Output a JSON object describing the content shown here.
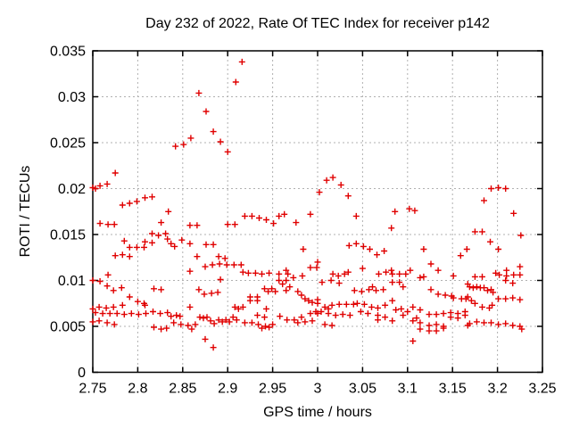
{
  "chart_data": {
    "type": "scatter",
    "title": "Day 232 of 2022, Rate Of TEC Index for receiver p142",
    "xlabel": "GPS time / hours",
    "ylabel": "ROTI / TECUs",
    "xlim": [
      2.75,
      3.25
    ],
    "ylim": [
      0,
      0.035
    ],
    "xticks": {
      "values": [
        2.75,
        2.8,
        2.85,
        2.9,
        2.95,
        3.0,
        3.05,
        3.1,
        3.15,
        3.2,
        3.25
      ],
      "labels": [
        "2.75",
        "2.8",
        "2.85",
        "2.9",
        "2.95",
        "3",
        "3.05",
        "3.1",
        "3.15",
        "3.2",
        "3.25"
      ]
    },
    "yticks": {
      "values": [
        0,
        0.005,
        0.01,
        0.015,
        0.02,
        0.025,
        0.03,
        0.035
      ],
      "labels": [
        "0",
        "0.005",
        "0.01",
        "0.015",
        "0.02",
        "0.025",
        "0.03",
        "0.035"
      ]
    },
    "grid": true,
    "legend": "none",
    "marker": "plus",
    "colors": {
      "marker": "#e00000",
      "grid": "#b0b0b0",
      "axis": "#000000"
    },
    "points": [
      [
        2.916,
        0.0338
      ],
      [
        2.909,
        0.0316
      ],
      [
        2.868,
        0.0304
      ],
      [
        2.876,
        0.0284
      ],
      [
        2.884,
        0.0262
      ],
      [
        2.892,
        0.0251
      ],
      [
        2.9,
        0.024
      ],
      [
        2.859,
        0.0255
      ],
      [
        2.851,
        0.0248
      ],
      [
        2.842,
        0.0246
      ],
      [
        2.775,
        0.0217
      ],
      [
        2.766,
        0.0205
      ],
      [
        2.758,
        0.0203
      ],
      [
        2.75,
        0.0201
      ],
      [
        2.753,
        0.02
      ],
      [
        2.808,
        0.019
      ],
      [
        2.816,
        0.0191
      ],
      [
        2.799,
        0.0186
      ],
      [
        2.791,
        0.0184
      ],
      [
        2.783,
        0.0182
      ],
      [
        2.834,
        0.0175
      ],
      [
        3.002,
        0.0196
      ],
      [
        3.01,
        0.0209
      ],
      [
        3.017,
        0.0212
      ],
      [
        3.026,
        0.0204
      ],
      [
        3.034,
        0.0192
      ],
      [
        3.193,
        0.02
      ],
      [
        3.201,
        0.0201
      ],
      [
        3.209,
        0.02
      ],
      [
        3.185,
        0.0187
      ],
      [
        3.102,
        0.0178
      ],
      [
        3.108,
        0.0176
      ],
      [
        3.086,
        0.0175
      ],
      [
        3.218,
        0.0173
      ],
      [
        2.758,
        0.0162
      ],
      [
        2.767,
        0.0161
      ],
      [
        2.774,
        0.0161
      ],
      [
        2.826,
        0.0163
      ],
      [
        2.816,
        0.0151
      ],
      [
        2.823,
        0.0149
      ],
      [
        2.831,
        0.0151
      ],
      [
        2.785,
        0.0143
      ],
      [
        2.808,
        0.0142
      ],
      [
        2.816,
        0.0141
      ],
      [
        2.791,
        0.0136
      ],
      [
        2.799,
        0.0136
      ],
      [
        2.807,
        0.0136
      ],
      [
        2.775,
        0.0127
      ],
      [
        2.783,
        0.0128
      ],
      [
        2.791,
        0.0126
      ],
      [
        2.767,
        0.0106
      ],
      [
        2.758,
        0.0099
      ],
      [
        2.75,
        0.01
      ],
      [
        2.766,
        0.0094
      ],
      [
        2.773,
        0.0089
      ],
      [
        2.782,
        0.0092
      ],
      [
        2.818,
        0.0091
      ],
      [
        2.826,
        0.009
      ],
      [
        2.791,
        0.0082
      ],
      [
        2.8,
        0.0077
      ],
      [
        2.807,
        0.0075
      ],
      [
        2.757,
        0.0071
      ],
      [
        2.765,
        0.007
      ],
      [
        2.773,
        0.0071
      ],
      [
        2.783,
        0.0073
      ],
      [
        2.808,
        0.0073
      ],
      [
        2.75,
        0.0069
      ],
      [
        2.753,
        0.0065
      ],
      [
        2.761,
        0.0064
      ],
      [
        2.769,
        0.0064
      ],
      [
        2.777,
        0.0064
      ],
      [
        2.785,
        0.0063
      ],
      [
        2.793,
        0.0064
      ],
      [
        2.801,
        0.0063
      ],
      [
        2.809,
        0.0064
      ],
      [
        2.817,
        0.0066
      ],
      [
        2.825,
        0.0064
      ],
      [
        2.757,
        0.0056
      ],
      [
        2.766,
        0.0054
      ],
      [
        2.774,
        0.0052
      ],
      [
        2.75,
        0.0055
      ],
      [
        2.818,
        0.0049
      ],
      [
        2.826,
        0.0047
      ],
      [
        2.832,
        0.0048
      ],
      [
        2.858,
        0.016
      ],
      [
        2.866,
        0.016
      ],
      [
        2.9,
        0.0161
      ],
      [
        2.908,
        0.0161
      ],
      [
        2.837,
        0.014
      ],
      [
        2.841,
        0.0137
      ],
      [
        2.849,
        0.0144
      ],
      [
        2.858,
        0.014
      ],
      [
        2.876,
        0.0139
      ],
      [
        2.884,
        0.0139
      ],
      [
        2.833,
        0.0145
      ],
      [
        2.866,
        0.0126
      ],
      [
        2.89,
        0.0126
      ],
      [
        2.897,
        0.0124
      ],
      [
        2.858,
        0.011
      ],
      [
        2.875,
        0.0115
      ],
      [
        2.883,
        0.0117
      ],
      [
        2.891,
        0.0118
      ],
      [
        2.899,
        0.0117
      ],
      [
        2.907,
        0.0117
      ],
      [
        2.915,
        0.0117
      ],
      [
        2.892,
        0.0101
      ],
      [
        2.868,
        0.009
      ],
      [
        2.874,
        0.0085
      ],
      [
        2.882,
        0.0086
      ],
      [
        2.889,
        0.0087
      ],
      [
        2.858,
        0.0071
      ],
      [
        2.908,
        0.0071
      ],
      [
        2.912,
        0.0069
      ],
      [
        2.833,
        0.0065
      ],
      [
        2.837,
        0.0061
      ],
      [
        2.843,
        0.0062
      ],
      [
        2.847,
        0.0061
      ],
      [
        2.84,
        0.0054
      ],
      [
        2.848,
        0.0052
      ],
      [
        2.856,
        0.0051
      ],
      [
        2.86,
        0.0047
      ],
      [
        2.864,
        0.0052
      ],
      [
        2.869,
        0.006
      ],
      [
        2.873,
        0.0059
      ],
      [
        2.877,
        0.006
      ],
      [
        2.881,
        0.0056
      ],
      [
        2.885,
        0.0053
      ],
      [
        2.89,
        0.0057
      ],
      [
        2.894,
        0.0055
      ],
      [
        2.898,
        0.0057
      ],
      [
        2.902,
        0.0055
      ],
      [
        2.906,
        0.006
      ],
      [
        2.91,
        0.0057
      ],
      [
        2.875,
        0.0036
      ],
      [
        2.884,
        0.0027
      ],
      [
        2.919,
        0.017
      ],
      [
        2.927,
        0.017
      ],
      [
        2.935,
        0.0168
      ],
      [
        2.943,
        0.0166
      ],
      [
        2.951,
        0.0162
      ],
      [
        2.957,
        0.017
      ],
      [
        2.963,
        0.0172
      ],
      [
        2.976,
        0.0163
      ],
      [
        2.992,
        0.0172
      ],
      [
        2.984,
        0.0134
      ],
      [
        2.917,
        0.0109
      ],
      [
        2.923,
        0.0108
      ],
      [
        2.931,
        0.0108
      ],
      [
        2.938,
        0.0107
      ],
      [
        2.946,
        0.0108
      ],
      [
        2.957,
        0.0107
      ],
      [
        2.965,
        0.0111
      ],
      [
        2.967,
        0.0107
      ],
      [
        2.973,
        0.0103
      ],
      [
        2.983,
        0.0105
      ],
      [
        2.992,
        0.0114
      ],
      [
        2.999,
        0.0114
      ],
      [
        2.957,
        0.01
      ],
      [
        2.961,
        0.0096
      ],
      [
        2.965,
        0.01
      ],
      [
        2.969,
        0.0093
      ],
      [
        2.965,
        0.0089
      ],
      [
        2.941,
        0.0091
      ],
      [
        2.945,
        0.0088
      ],
      [
        2.949,
        0.0091
      ],
      [
        2.953,
        0.0088
      ],
      [
        2.925,
        0.0082
      ],
      [
        2.933,
        0.0082
      ],
      [
        2.925,
        0.0078
      ],
      [
        2.933,
        0.0078
      ],
      [
        2.917,
        0.0071
      ],
      [
        2.943,
        0.0069
      ],
      [
        2.978,
        0.0088
      ],
      [
        2.982,
        0.0084
      ],
      [
        2.986,
        0.008
      ],
      [
        2.99,
        0.0078
      ],
      [
        2.994,
        0.0076
      ],
      [
        2.933,
        0.0062
      ],
      [
        2.941,
        0.006
      ],
      [
        2.919,
        0.0054
      ],
      [
        2.927,
        0.0054
      ],
      [
        2.934,
        0.0052
      ],
      [
        2.942,
        0.005
      ],
      [
        2.95,
        0.0052
      ],
      [
        2.938,
        0.0048
      ],
      [
        2.946,
        0.0049
      ],
      [
        2.958,
        0.0061
      ],
      [
        2.966,
        0.0057
      ],
      [
        2.974,
        0.0057
      ],
      [
        2.982,
        0.006
      ],
      [
        2.978,
        0.0054
      ],
      [
        2.986,
        0.0055
      ],
      [
        2.994,
        0.0056
      ],
      [
        2.992,
        0.0064
      ],
      [
        2.998,
        0.0066
      ],
      [
        3.043,
        0.017
      ],
      [
        3.082,
        0.0157
      ],
      [
        3.035,
        0.0138
      ],
      [
        3.043,
        0.014
      ],
      [
        3.051,
        0.0137
      ],
      [
        3.058,
        0.0134
      ],
      [
        3.066,
        0.0128
      ],
      [
        3.074,
        0.0132
      ],
      [
        3.0,
        0.012
      ],
      [
        3.017,
        0.0107
      ],
      [
        3.023,
        0.0105
      ],
      [
        3.03,
        0.0107
      ],
      [
        3.034,
        0.0109
      ],
      [
        3.05,
        0.0113
      ],
      [
        3.068,
        0.0107
      ],
      [
        3.076,
        0.0109
      ],
      [
        3.082,
        0.0111
      ],
      [
        3.005,
        0.0098
      ],
      [
        3.015,
        0.01
      ],
      [
        3.024,
        0.0097
      ],
      [
        3.041,
        0.0089
      ],
      [
        3.049,
        0.0088
      ],
      [
        3.057,
        0.009
      ],
      [
        3.061,
        0.0093
      ],
      [
        3.065,
        0.0089
      ],
      [
        3.073,
        0.009
      ],
      [
        3.0,
        0.0079
      ],
      [
        3.0,
        0.0075
      ],
      [
        3.008,
        0.0071
      ],
      [
        3.012,
        0.0069
      ],
      [
        3.016,
        0.0073
      ],
      [
        3.024,
        0.0074
      ],
      [
        3.032,
        0.0074
      ],
      [
        3.04,
        0.0074
      ],
      [
        3.044,
        0.0075
      ],
      [
        3.052,
        0.0074
      ],
      [
        3.06,
        0.0071
      ],
      [
        3.067,
        0.007
      ],
      [
        3.075,
        0.0073
      ],
      [
        3.004,
        0.0066
      ],
      [
        3.012,
        0.0064
      ],
      [
        3.02,
        0.0062
      ],
      [
        3.028,
        0.0063
      ],
      [
        3.036,
        0.0062
      ],
      [
        3.048,
        0.0066
      ],
      [
        3.056,
        0.0064
      ],
      [
        3.0,
        0.0064
      ],
      [
        3.008,
        0.0052
      ],
      [
        3.016,
        0.0051
      ],
      [
        3.067,
        0.0062
      ],
      [
        3.075,
        0.006
      ],
      [
        3.067,
        0.0057
      ],
      [
        3.118,
        0.0134
      ],
      [
        3.159,
        0.0127
      ],
      [
        3.126,
        0.0118
      ],
      [
        3.134,
        0.0111
      ],
      [
        3.083,
        0.0107
      ],
      [
        3.091,
        0.0107
      ],
      [
        3.098,
        0.0107
      ],
      [
        3.103,
        0.0111
      ],
      [
        3.083,
        0.0098
      ],
      [
        3.091,
        0.0098
      ],
      [
        3.095,
        0.0093
      ],
      [
        3.114,
        0.0103
      ],
      [
        3.118,
        0.0104
      ],
      [
        3.151,
        0.0105
      ],
      [
        3.126,
        0.009
      ],
      [
        3.134,
        0.0085
      ],
      [
        3.142,
        0.0084
      ],
      [
        3.149,
        0.0083
      ],
      [
        3.151,
        0.0081
      ],
      [
        3.16,
        0.008
      ],
      [
        3.165,
        0.008
      ],
      [
        3.083,
        0.0078
      ],
      [
        3.087,
        0.0068
      ],
      [
        3.093,
        0.0069
      ],
      [
        3.1,
        0.0066
      ],
      [
        3.095,
        0.0062
      ],
      [
        3.083,
        0.0056
      ],
      [
        3.106,
        0.0071
      ],
      [
        3.114,
        0.0068
      ],
      [
        3.106,
        0.0056
      ],
      [
        3.11,
        0.0059
      ],
      [
        3.114,
        0.0054
      ],
      [
        3.124,
        0.0063
      ],
      [
        3.132,
        0.0063
      ],
      [
        3.14,
        0.0064
      ],
      [
        3.124,
        0.0051
      ],
      [
        3.132,
        0.0052
      ],
      [
        3.14,
        0.005
      ],
      [
        3.148,
        0.0065
      ],
      [
        3.156,
        0.0064
      ],
      [
        3.148,
        0.006
      ],
      [
        3.156,
        0.0059
      ],
      [
        3.164,
        0.0062
      ],
      [
        3.164,
        0.0066
      ],
      [
        3.114,
        0.0047
      ],
      [
        3.124,
        0.0045
      ],
      [
        3.132,
        0.0045
      ],
      [
        3.14,
        0.0048
      ],
      [
        3.106,
        0.0034
      ],
      [
        3.175,
        0.0153
      ],
      [
        3.183,
        0.0153
      ],
      [
        3.226,
        0.0149
      ],
      [
        3.192,
        0.0142
      ],
      [
        3.166,
        0.0134
      ],
      [
        3.201,
        0.0134
      ],
      [
        3.225,
        0.0115
      ],
      [
        3.225,
        0.0106
      ],
      [
        3.198,
        0.0108
      ],
      [
        3.202,
        0.0106
      ],
      [
        3.21,
        0.0111
      ],
      [
        3.21,
        0.0105
      ],
      [
        3.218,
        0.0106
      ],
      [
        3.175,
        0.0104
      ],
      [
        3.183,
        0.0104
      ],
      [
        3.209,
        0.01
      ],
      [
        3.217,
        0.0097
      ],
      [
        3.167,
        0.0096
      ],
      [
        3.169,
        0.0093
      ],
      [
        3.173,
        0.0092
      ],
      [
        3.177,
        0.0093
      ],
      [
        3.181,
        0.0092
      ],
      [
        3.185,
        0.0092
      ],
      [
        3.189,
        0.0089
      ],
      [
        3.193,
        0.009
      ],
      [
        3.195,
        0.0087
      ],
      [
        3.167,
        0.0082
      ],
      [
        3.171,
        0.0078
      ],
      [
        3.175,
        0.0075
      ],
      [
        3.201,
        0.008
      ],
      [
        3.209,
        0.008
      ],
      [
        3.217,
        0.0081
      ],
      [
        3.225,
        0.0079
      ],
      [
        3.183,
        0.0071
      ],
      [
        3.191,
        0.007
      ],
      [
        3.194,
        0.0073
      ],
      [
        3.169,
        0.0053
      ],
      [
        3.177,
        0.0055
      ],
      [
        3.185,
        0.0054
      ],
      [
        3.193,
        0.0054
      ],
      [
        3.201,
        0.0052
      ],
      [
        3.209,
        0.0053
      ],
      [
        3.217,
        0.0051
      ],
      [
        3.225,
        0.005
      ],
      [
        3.227,
        0.0047
      ],
      [
        3.167,
        0.0051
      ]
    ]
  }
}
